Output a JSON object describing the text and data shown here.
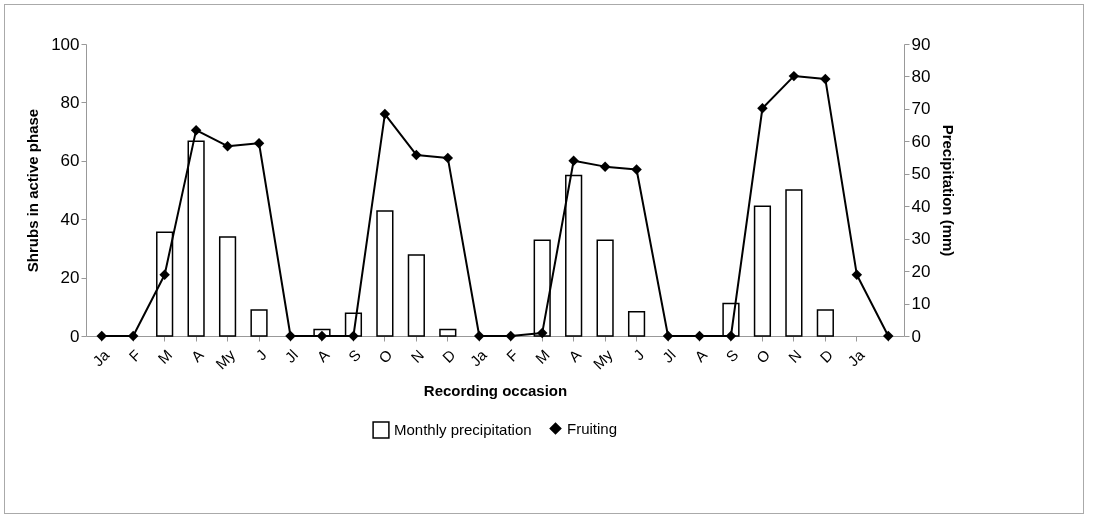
{
  "chart_data": {
    "type": "bar",
    "xlabel": "Recording occasion",
    "ylabel": "Shrubs in active phase",
    "y2label": "Precipitation (mm)",
    "categories": [
      "Ja",
      "F",
      "M",
      "A",
      "My",
      "J",
      "Jl",
      "A",
      "S",
      "O",
      "N",
      "D",
      "Ja",
      "F",
      "M",
      "A",
      "My",
      "J",
      "Jl",
      "A",
      "S",
      "O",
      "N",
      "D",
      "Ja",
      null
    ],
    "series": [
      {
        "name": "Monthly precipitation",
        "axis": "y2",
        "color": "#ffffff",
        "values": [
          null,
          null,
          32,
          60,
          30.5,
          8,
          null,
          2,
          7,
          38.5,
          25,
          2,
          null,
          null,
          29.5,
          49.5,
          29.5,
          7.5,
          null,
          null,
          10,
          40,
          45,
          8,
          null,
          null
        ]
      },
      {
        "name": "Fruiting",
        "type": "line",
        "color": "#000000",
        "values": [
          0,
          0,
          21,
          70.5,
          65,
          66,
          0,
          0,
          0,
          76,
          62,
          61,
          0,
          0,
          1,
          60,
          58,
          57,
          0,
          0,
          0,
          78,
          89,
          88,
          21,
          0
        ]
      }
    ],
    "ylim": [
      0,
      100
    ],
    "yticks": [
      0,
      20,
      40,
      60,
      80,
      100
    ],
    "y2lim": [
      0,
      90
    ],
    "y2ticks": [
      0,
      10,
      20,
      30,
      40,
      50,
      60,
      70,
      80,
      90
    ],
    "grid": false,
    "legend": "bottom",
    "marker": "diamond",
    "line_style": "solid"
  }
}
